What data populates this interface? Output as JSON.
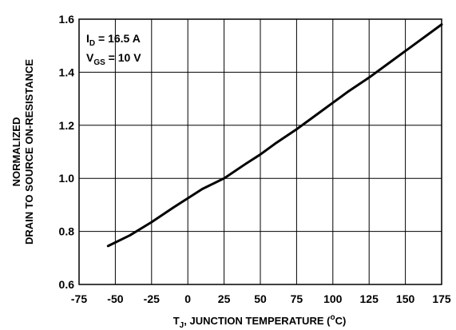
{
  "chart_data": {
    "type": "line",
    "xlabel": {
      "pre": "T",
      "sub": "J",
      "mid": ", JUNCTION TEMPERATURE (",
      "sup": "o",
      "post": "C)"
    },
    "ylabel_lines": [
      "NORMALIZED",
      "DRAIN TO SOURCE ON-RESISTANCE"
    ],
    "xlim": [
      -75,
      175
    ],
    "ylim": [
      0.6,
      1.6
    ],
    "xticks": [
      -75,
      -50,
      -25,
      0,
      25,
      50,
      75,
      100,
      125,
      150,
      175
    ],
    "xtick_labels": [
      "-75",
      "-50",
      "-25",
      "0",
      "25",
      "50",
      "75",
      "100",
      "125",
      "150",
      "175"
    ],
    "yticks": [
      0.6,
      0.8,
      1.0,
      1.2,
      1.4,
      1.6
    ],
    "ytick_labels": [
      "0.6",
      "0.8",
      "1.0",
      "1.2",
      "1.4",
      "1.6"
    ],
    "grid": true,
    "annotations": [
      {
        "pre": "I",
        "sub": "D",
        "post": " = 16.5 A"
      },
      {
        "pre": "V",
        "sub": "GS",
        "post": " = 10 V"
      }
    ],
    "series": [
      {
        "x": [
          -55,
          -40,
          -25,
          -10,
          0,
          10,
          25,
          40,
          50,
          60,
          75,
          90,
          100,
          110,
          125,
          140,
          150,
          160,
          175
        ],
        "y": [
          0.745,
          0.785,
          0.835,
          0.89,
          0.925,
          0.96,
          1.0,
          1.055,
          1.09,
          1.13,
          1.185,
          1.245,
          1.285,
          1.325,
          1.38,
          1.44,
          1.48,
          1.52,
          1.58
        ]
      }
    ]
  }
}
